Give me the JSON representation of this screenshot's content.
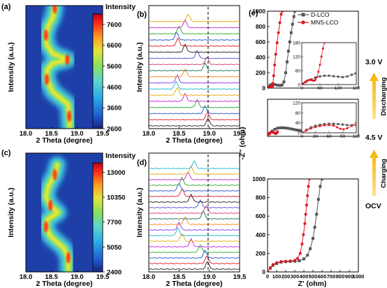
{
  "colors": {
    "colorbar": [
      "#1a237e",
      "#1e5fd6",
      "#2ab0e6",
      "#5fd6c8",
      "#8be05a",
      "#e6e63a",
      "#ff9a1f",
      "#ff2a1a",
      "#c0001a"
    ],
    "heat_background": "#1f3fa8",
    "dlco": "#555555",
    "mnslco": "#e0141e",
    "arrow": "#f5b400"
  },
  "chart_data": [
    {
      "panel": "(a)",
      "type": "heatmap",
      "xlabel": "2 Theta (degree)",
      "ylabel": "Intensity (a.u.)",
      "xticks": [
        "18.0",
        "18.5",
        "19.0",
        "19.5"
      ],
      "xlim": [
        18.0,
        19.5
      ],
      "colorbar_title": "Intensity",
      "colorbar_ticks": [
        "7600",
        "6600",
        "5600",
        "4600",
        "3600",
        "2600"
      ],
      "colorbar_range": [
        2600,
        8100
      ],
      "peak_track": [
        [
          18.98,
          0.02
        ],
        [
          18.97,
          0.1
        ],
        [
          18.94,
          0.2
        ],
        [
          18.6,
          0.3
        ],
        [
          18.47,
          0.4
        ],
        [
          18.48,
          0.48
        ],
        [
          18.6,
          0.53
        ],
        [
          18.93,
          0.56
        ],
        [
          18.6,
          0.61
        ],
        [
          18.47,
          0.68
        ],
        [
          18.45,
          0.76
        ],
        [
          18.5,
          0.83
        ],
        [
          18.6,
          0.9
        ],
        [
          18.65,
          0.98
        ]
      ]
    },
    {
      "panel": "(b)",
      "type": "line",
      "xlabel": "2 Theta (degree)",
      "ylabel": "Intensity (a.u.)",
      "xticks": [
        "18.0",
        "18.5",
        "19.0",
        "19.5"
      ],
      "xlim": [
        18.0,
        19.5
      ],
      "reference_line_x": 18.98,
      "peak_positions": [
        18.98,
        18.97,
        18.93,
        18.8,
        18.6,
        18.47,
        18.45,
        18.47,
        18.6,
        18.93,
        18.96,
        18.8,
        18.6,
        18.48,
        18.46,
        18.5,
        18.6,
        18.65
      ]
    },
    {
      "panel": "(c)",
      "type": "heatmap",
      "xlabel": "2 Theta (degree)",
      "ylabel": "Intensity (a.u.)",
      "xticks": [
        "18.0",
        "18.5",
        "19.0",
        "19.5"
      ],
      "xlim": [
        18.0,
        19.5
      ],
      "colorbar_title": "Intensity",
      "colorbar_ticks": [
        "13000",
        "10350",
        "7700",
        "5050",
        "2400"
      ],
      "colorbar_range": [
        2400,
        14000
      ],
      "peak_track": [
        [
          18.95,
          0.02
        ],
        [
          18.95,
          0.12
        ],
        [
          18.85,
          0.2
        ],
        [
          18.55,
          0.3
        ],
        [
          18.45,
          0.38
        ],
        [
          18.48,
          0.44
        ],
        [
          18.72,
          0.5
        ],
        [
          18.55,
          0.56
        ],
        [
          18.45,
          0.63
        ],
        [
          18.5,
          0.72
        ],
        [
          18.65,
          0.82
        ],
        [
          18.7,
          0.9
        ]
      ]
    },
    {
      "panel": "(d)",
      "type": "line",
      "xlabel": "2 Theta (degree)",
      "ylabel": "Intensity (a.u.)",
      "xticks": [
        "18.0",
        "18.5",
        "19.0",
        "19.5"
      ],
      "xlim": [
        18.0,
        19.5
      ],
      "reference_line_x": 18.98,
      "peak_positions": [
        18.97,
        18.96,
        18.93,
        18.85,
        18.7,
        18.55,
        18.48,
        18.5,
        18.6,
        18.9,
        18.95,
        18.85,
        18.7,
        18.55,
        18.5,
        18.55,
        18.65,
        18.7,
        18.75
      ]
    },
    {
      "panel": "(e)",
      "type": "scatter",
      "xlabel": "Z' (ohm)",
      "ylabel": "-Z'' (ohm)",
      "xticks": [
        "0",
        "100",
        "200",
        "300",
        "400",
        "500",
        "600",
        "700",
        "800",
        "900",
        "1000"
      ],
      "legend": [
        "D-LCO",
        "MNS-LCO"
      ],
      "legend_placement": "top-right",
      "states": [
        "3.0 V",
        "Discharging",
        "4.5 V",
        "Charging",
        "OCV"
      ],
      "subplots": [
        {
          "state": "3.0 V",
          "xlim": [
            0,
            1000
          ],
          "ylim": [
            0,
            1000
          ],
          "yticks": [
            "0",
            "200",
            "400",
            "600",
            "800",
            "1000"
          ],
          "series": [
            {
              "name": "D-LCO",
              "x": [
                0,
                15,
                30,
                50,
                80,
                110,
                140,
                160,
                180,
                200,
                215,
                230,
                245,
                260,
                275,
                290,
                300
              ],
              "y": [
                0,
                20,
                40,
                50,
                45,
                38,
                35,
                40,
                80,
                200,
                340,
                480,
                600,
                720,
                830,
                930,
                1000
              ]
            },
            {
              "name": "MNS-LCO",
              "x": [
                0,
                10,
                20,
                30,
                40,
                50,
                55,
                60,
                68,
                78,
                90,
                105,
                120,
                135,
                150,
                160
              ],
              "y": [
                0,
                8,
                15,
                18,
                14,
                10,
                25,
                60,
                160,
                300,
                440,
                590,
                720,
                850,
                960,
                1000
              ]
            }
          ],
          "inset": {
            "xlim": [
              0,
              180
            ],
            "ylim": [
              0,
              180
            ],
            "xticks": [
              "0",
              "60",
              "120",
              "180"
            ],
            "yticks": [
              "0",
              "60",
              "120",
              "180"
            ],
            "series": [
              {
                "name": "D-LCO",
                "x": [
                  0,
                  15,
                  30,
                  45,
                  60,
                  75,
                  90,
                  105,
                  120,
                  135,
                  150,
                  165,
                  178
                ],
                "y": [
                  0,
                  12,
                  22,
                  30,
                  35,
                  38,
                  38,
                  36,
                  34,
                  32,
                  35,
                  42,
                  48
                ]
              },
              {
                "name": "MNS-LCO",
                "x": [
                  0,
                  5,
                  10,
                  15,
                  20,
                  25,
                  30,
                  35,
                  40,
                  45,
                  50,
                  55,
                  60,
                  65,
                  70,
                  75
                ],
                "y": [
                  0,
                  5,
                  10,
                  15,
                  18,
                  20,
                  20,
                  18,
                  17,
                  20,
                  32,
                  55,
                  85,
                  120,
                  155,
                  180
                ]
              }
            ]
          }
        },
        {
          "state": "4.5 V",
          "xlim": [
            0,
            1000
          ],
          "ylim": [
            0,
            1000
          ],
          "series": [
            {
              "name": "D-LCO",
              "x": [
                0,
                20,
                50,
                80,
                110,
                140,
                170,
                200,
                230,
                260,
                290,
                320,
                350,
                380,
                410,
                440,
                460
              ],
              "y": [
                0,
                70,
                140,
                190,
                220,
                230,
                230,
                225,
                215,
                200,
                185,
                170,
                160,
                150,
                145,
                140,
                138
              ]
            },
            {
              "name": "MNS-LCO",
              "x": [
                0,
                15,
                30,
                45,
                60,
                75,
                90,
                100,
                110
              ],
              "y": [
                0,
                60,
                100,
                115,
                110,
                90,
                70,
                90,
                120
              ]
            }
          ],
          "inset": {
            "xlim": [
              0,
              120
            ],
            "ylim": [
              0,
              120
            ],
            "xticks": [
              "0",
              "30",
              "60",
              "90",
              "120"
            ],
            "yticks": [
              "0",
              "40",
              "80",
              "120"
            ],
            "series": [
              {
                "name": "D-LCO",
                "x": [
                  0,
                  10,
                  20,
                  30,
                  40,
                  50,
                  60,
                  70,
                  80,
                  90,
                  100,
                  110,
                  120
                ],
                "y": [
                  0,
                  12,
                  22,
                  28,
                  32,
                  35,
                  36,
                  36,
                  35,
                  33,
                  31,
                  30,
                  30
                ]
              },
              {
                "name": "MNS-LCO",
                "x": [
                  0,
                  10,
                  20,
                  30,
                  40,
                  50,
                  60,
                  70,
                  78,
                  85,
                  92,
                  100,
                  110,
                  120
                ],
                "y": [
                  0,
                  9,
                  17,
                  23,
                  27,
                  30,
                  31,
                  29,
                  22,
                  16,
                  14,
                  18,
                  28,
                  40
                ]
              }
            ]
          }
        },
        {
          "state": "OCV",
          "xlim": [
            0,
            1000
          ],
          "ylim": [
            0,
            1000
          ],
          "yticks": [
            "0",
            "200",
            "400",
            "600",
            "800",
            "1000"
          ],
          "series": [
            {
              "name": "D-LCO",
              "x": [
                0,
                30,
                60,
                100,
                150,
                200,
                250,
                300,
                350,
                400,
                440,
                470,
                500,
                520,
                540,
                560,
                580,
                600
              ],
              "y": [
                0,
                40,
                70,
                90,
                105,
                110,
                112,
                115,
                120,
                140,
                180,
                250,
                360,
                480,
                620,
                780,
                920,
                1000
              ]
            },
            {
              "name": "MNS-LCO",
              "x": [
                0,
                30,
                60,
                100,
                150,
                200,
                250,
                300,
                330,
                360,
                380,
                395,
                410,
                420,
                430,
                440,
                450,
                460
              ],
              "y": [
                0,
                45,
                80,
                100,
                112,
                115,
                118,
                125,
                145,
                200,
                300,
                400,
                520,
                620,
                720,
                820,
                920,
                1000
              ]
            }
          ]
        }
      ]
    }
  ]
}
